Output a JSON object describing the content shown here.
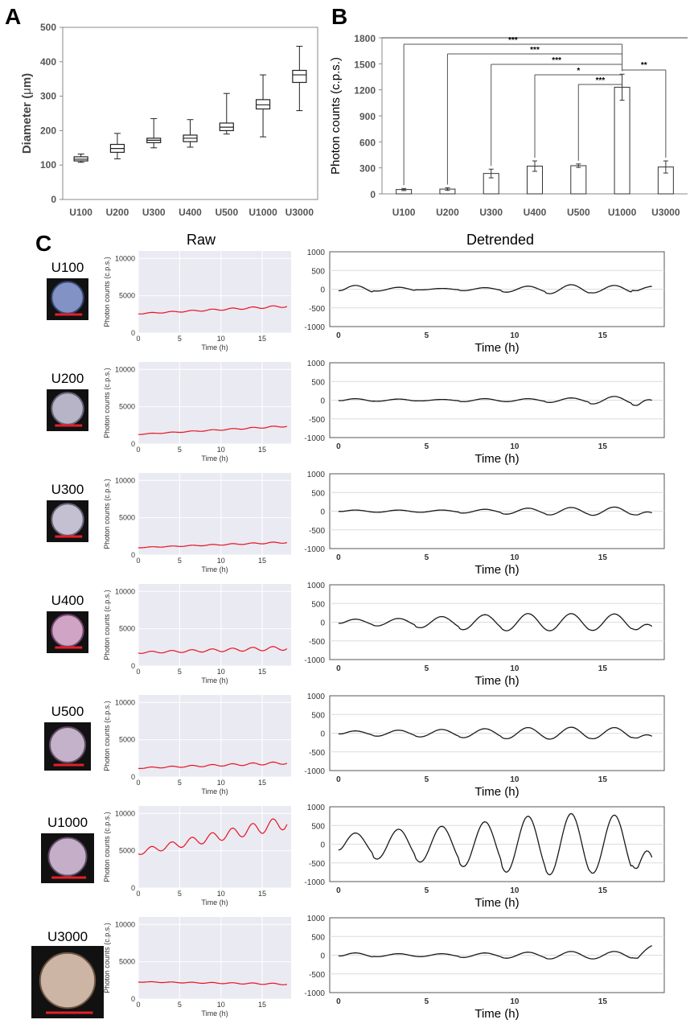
{
  "chart_data": [
    {
      "panel": "A",
      "type": "boxplot",
      "ylabel_text": "Diameter (",
      "ylabel_mu": "μ",
      "ylabel_end": "m)",
      "ylim": [
        0,
        500
      ],
      "yticks": [
        0,
        100,
        200,
        300,
        400,
        500
      ],
      "categories": [
        "U100",
        "U200",
        "U300",
        "U400",
        "U500",
        "U1000",
        "U3000"
      ],
      "boxes": [
        {
          "min": 108,
          "q1": 112,
          "median": 117,
          "q3": 124,
          "max": 132
        },
        {
          "min": 118,
          "q1": 137,
          "median": 148,
          "q3": 160,
          "max": 192
        },
        {
          "min": 150,
          "q1": 165,
          "median": 172,
          "q3": 178,
          "max": 235
        },
        {
          "min": 152,
          "q1": 168,
          "median": 178,
          "q3": 187,
          "max": 232
        },
        {
          "min": 190,
          "q1": 200,
          "median": 210,
          "q3": 222,
          "max": 308
        },
        {
          "min": 182,
          "q1": 263,
          "median": 275,
          "q3": 290,
          "max": 362
        },
        {
          "min": 258,
          "q1": 340,
          "median": 362,
          "q3": 375,
          "max": 445
        }
      ]
    },
    {
      "panel": "B",
      "type": "bar",
      "ylabel": "Photon counts (c.p.s.)",
      "ylim": [
        0,
        1800
      ],
      "yticks": [
        0,
        300,
        600,
        900,
        1200,
        1500,
        1800
      ],
      "categories": [
        "U100",
        "U200",
        "U300",
        "U400",
        "U500",
        "U1000",
        "U3000"
      ],
      "values": [
        50,
        55,
        235,
        320,
        325,
        1230,
        310
      ],
      "errors": [
        12,
        15,
        50,
        60,
        20,
        150,
        70
      ],
      "significance": [
        {
          "from": "U100",
          "to": "U1000",
          "label": "***"
        },
        {
          "from": "U200",
          "to": "U1000",
          "label": "***"
        },
        {
          "from": "U300",
          "to": "U1000",
          "label": "***"
        },
        {
          "from": "U400",
          "to": "U1000",
          "label": "*"
        },
        {
          "from": "U500",
          "to": "U1000",
          "label": "***"
        },
        {
          "from": "U1000",
          "to": "U3000",
          "label": "**"
        }
      ]
    },
    {
      "panel": "C",
      "type": "line",
      "raw_title": "Raw",
      "detrended_title": "Detrended",
      "raw_ylabel": "Photon counts (c.p.s.)",
      "raw_xlabel": "Time (h)",
      "detrended_xlabel": "Time (h)",
      "raw_ylim": [
        0,
        11000
      ],
      "raw_yticks": [
        0,
        5000,
        10000
      ],
      "detrended_ylim": [
        -1000,
        1000
      ],
      "detrended_yticks": [
        -1000,
        -500,
        0,
        500,
        1000
      ],
      "xticks": [
        0,
        5,
        10,
        15
      ],
      "raw_color": "#e8121f",
      "detrended_color": "#1a1a1a",
      "rows": [
        {
          "label": "U100",
          "raw_start": 2600,
          "raw_end": 3600,
          "raw_amp": 150,
          "det_amp": [
            100,
            50,
            20,
            40,
            80,
            120,
            100,
            40
          ],
          "det_end": 70
        },
        {
          "label": "U200",
          "raw_start": 1300,
          "raw_end": 2400,
          "raw_amp": 100,
          "det_amp": [
            40,
            30,
            20,
            40,
            40,
            60,
            100,
            140
          ],
          "det_end": 10
        },
        {
          "label": "U300",
          "raw_start": 1000,
          "raw_end": 1700,
          "raw_amp": 100,
          "det_amp": [
            30,
            30,
            30,
            50,
            80,
            100,
            110,
            100
          ],
          "det_end": -30
        },
        {
          "label": "U400",
          "raw_start": 1800,
          "raw_end": 2400,
          "raw_amp": 280,
          "det_amp": [
            80,
            100,
            150,
            200,
            230,
            230,
            220,
            200
          ],
          "det_end": -80
        },
        {
          "label": "U500",
          "raw_start": 1200,
          "raw_end": 1900,
          "raw_amp": 180,
          "det_amp": [
            60,
            80,
            100,
            120,
            150,
            160,
            150,
            130
          ],
          "det_end": -60
        },
        {
          "label": "U1000",
          "raw_start": 4800,
          "raw_end": 8800,
          "raw_amp": 900,
          "det_amp": [
            300,
            400,
            480,
            600,
            750,
            820,
            780,
            650
          ],
          "det_end": -250
        },
        {
          "label": "U3000",
          "raw_start": 2300,
          "raw_end": 2000,
          "raw_amp": 100,
          "det_amp": [
            60,
            40,
            40,
            60,
            80,
            100,
            100,
            80
          ],
          "det_end": 230
        }
      ]
    }
  ]
}
